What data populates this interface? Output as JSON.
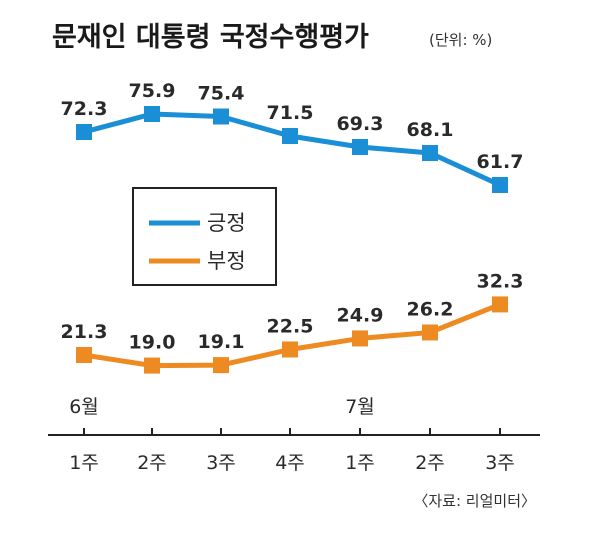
{
  "chart_data": {
    "type": "line",
    "title": "문재인 대통령 국정수행평가",
    "unit": "(단위: %)",
    "categories": [
      "1주",
      "2주",
      "3주",
      "4주",
      "1주",
      "2주",
      "3주"
    ],
    "month_labels": [
      {
        "index": 0,
        "label": "6월"
      },
      {
        "index": 4,
        "label": "7월"
      }
    ],
    "series": [
      {
        "name": "긍정",
        "color": "#1a8fd6",
        "values": [
          72.3,
          75.9,
          75.4,
          71.5,
          69.3,
          68.1,
          61.7
        ],
        "labels": [
          "72.3",
          "75.9",
          "75.4",
          "71.5",
          "69.3",
          "68.1",
          "61.7"
        ]
      },
      {
        "name": "부정",
        "color": "#ee8a22",
        "values": [
          21.3,
          19.0,
          19.1,
          22.5,
          24.9,
          26.2,
          32.3
        ],
        "labels": [
          "21.3",
          "19.0",
          "19.1",
          "22.5",
          "24.9",
          "26.2",
          "32.3"
        ]
      }
    ],
    "legend_position": "middle-left",
    "grid": false,
    "source": "〈자료: 리얼미터〉"
  }
}
